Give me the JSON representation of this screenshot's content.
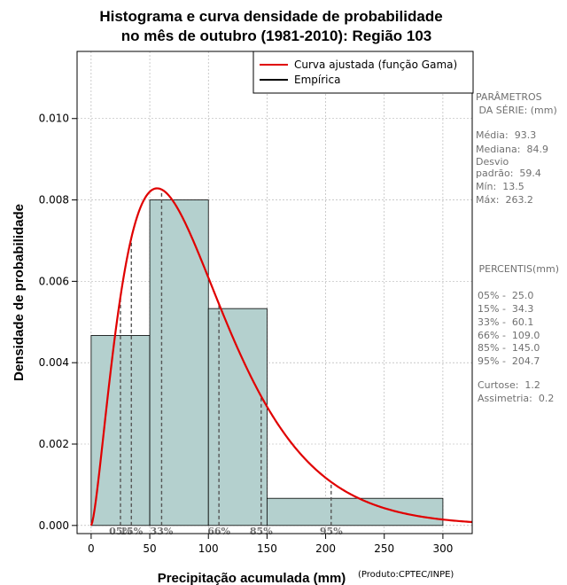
{
  "chart_data": {
    "type": "histogram",
    "title_lines": [
      "Histograma e curva densidade de probabilidade",
      "no mês de outubro (1981-2010): Região 103"
    ],
    "xlabel": "Precipitação acumulada (mm)",
    "ylabel": "Densidade de probabilidade",
    "credit": "(Produto:CPTEC/INPE)",
    "xlim": [
      -12,
      325
    ],
    "ylim": [
      -0.0002,
      0.01165
    ],
    "x_ticks": [
      0,
      50,
      100,
      150,
      200,
      250,
      300
    ],
    "y_ticks": [
      {
        "value": 0.0,
        "label": "0.000"
      },
      {
        "value": 0.002,
        "label": "0.002"
      },
      {
        "value": 0.004,
        "label": "0.004"
      },
      {
        "value": 0.006,
        "label": "0.006"
      },
      {
        "value": 0.008,
        "label": "0.008"
      },
      {
        "value": 0.01,
        "label": "0.010"
      }
    ],
    "grid": true,
    "bins": [
      {
        "from": 0,
        "to": 50,
        "density": 0.00467
      },
      {
        "from": 50,
        "to": 100,
        "density": 0.008
      },
      {
        "from": 100,
        "to": 150,
        "density": 0.00533
      },
      {
        "from": 150,
        "to": 300,
        "density": 0.000667
      }
    ],
    "gamma_fit": {
      "shape": 2.52,
      "scale": 37.0,
      "x_max": 325
    },
    "percentile_lines": [
      {
        "value": 25.0,
        "label": "05%"
      },
      {
        "value": 34.3,
        "label": "15%"
      },
      {
        "value": 60.1,
        "label": "33%"
      },
      {
        "value": 109.0,
        "label": "66%"
      },
      {
        "value": 145.0,
        "label": "85%"
      },
      {
        "value": 204.7,
        "label": "95%"
      }
    ],
    "legend": {
      "position": "top-right",
      "entries": [
        {
          "label": "Curva ajustada (função Gama)",
          "color": "#e00000"
        },
        {
          "label": "Empírica",
          "color": "#000000"
        }
      ]
    },
    "colors": {
      "bar_fill": "#b4d0ce",
      "curve": "#e00000",
      "percentile": "#555555",
      "grid": "#aaaaaa"
    }
  },
  "side_panel": {
    "params_title": [
      "PARÂMETROS",
      " DA SÉRIE: (mm)"
    ],
    "stats": [
      "Média:  93.3",
      "Mediana:  84.9",
      "Desvio",
      "padrão:  59.4",
      "Mín:  13.5",
      "Máx:  263.2"
    ],
    "percentis_title": " PERCENTIS(mm)",
    "percentis": [
      "05% -  25.0",
      "15% -  34.3",
      "33% -  60.1",
      "66% -  109.0",
      "85% -  145.0",
      "95% -  204.7"
    ],
    "shape_stats": [
      "Curtose:  1.2",
      "Assimetria:  0.2"
    ]
  }
}
